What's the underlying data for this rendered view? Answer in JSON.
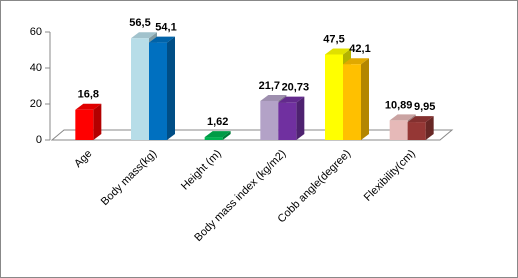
{
  "chart_data": {
    "type": "bar3d",
    "categories": [
      "Age",
      "Body mass(kg)",
      "Height (m)",
      "Body mass  index (kg/m2)",
      "Cobb angle(degree)",
      "Flexibility(cm)"
    ],
    "series": [
      {
        "values": [
          16.8,
          56.5,
          1.62,
          21.7,
          47.5,
          10.89
        ],
        "value_labels": [
          "16,8",
          "56,5",
          "1,62",
          "21,7",
          "47,5",
          "10,89"
        ],
        "colors": [
          "#ff0000",
          "#b7dde8",
          "#00b050",
          "#b3a2c7",
          "#ffff00",
          "#e6b9b8"
        ]
      },
      {
        "values": [
          null,
          54.1,
          null,
          20.73,
          42.1,
          9.95
        ],
        "value_labels": [
          null,
          "54,1",
          null,
          "20,73",
          "42,1",
          "9,95"
        ],
        "colors": [
          null,
          "#0070c0",
          null,
          "#7030a0",
          "#ffc000",
          "#953735"
        ]
      }
    ],
    "ylim": [
      0,
      60
    ],
    "yticks": [
      0,
      20,
      40,
      60
    ],
    "grid": false
  }
}
